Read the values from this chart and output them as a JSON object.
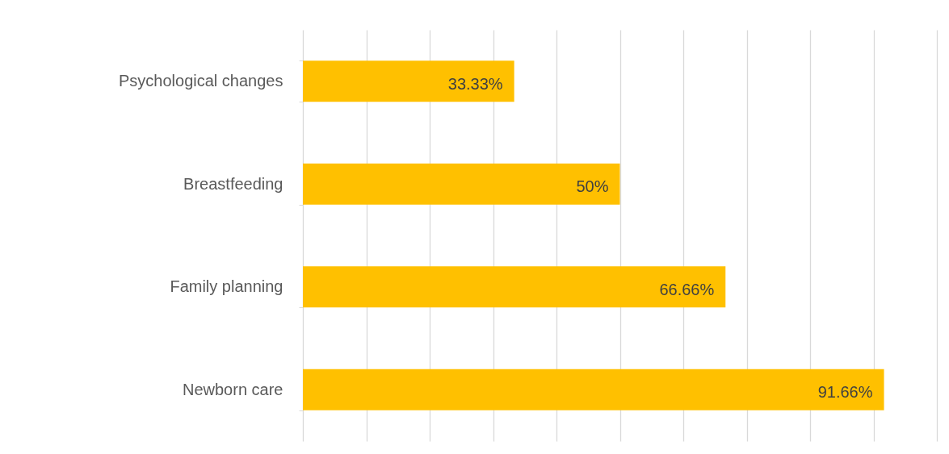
{
  "chart_data": {
    "type": "bar",
    "orientation": "horizontal",
    "categories": [
      "Psychological changes",
      "Breastfeeding",
      "Family planning",
      "Newborn care"
    ],
    "values": [
      33.33,
      50,
      66.66,
      91.66
    ],
    "value_labels": [
      "33.33%",
      "50%",
      "66.66%",
      "91.66%"
    ],
    "color": "#ffc000",
    "xlim": [
      0,
      100
    ],
    "xticks": [
      {
        "value": 0,
        "label": null
      },
      {
        "value": 10,
        "label": null
      },
      {
        "value": 20,
        "label": null
      },
      {
        "value": 30,
        "label": null
      },
      {
        "value": 40,
        "label": null
      },
      {
        "value": 50,
        "label": null
      },
      {
        "value": 60,
        "label": null
      },
      {
        "value": 70,
        "label": null
      },
      {
        "value": 80,
        "label": null
      },
      {
        "value": 90,
        "label": null
      },
      {
        "value": 100,
        "label": null
      }
    ],
    "grid": "x",
    "tick_labels": "y"
  }
}
